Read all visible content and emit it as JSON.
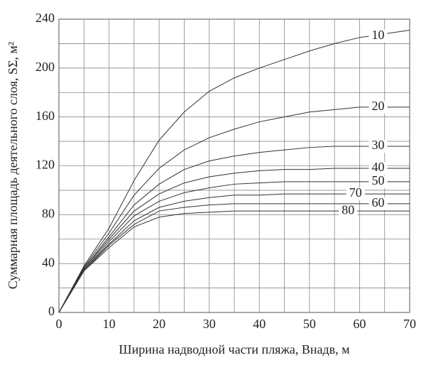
{
  "chart_data": {
    "type": "line",
    "xlabel": "Ширина надводной части пляжа, Bнадв, м",
    "ylabel": "Суммарная площадь деятельного слоя, SΣ, м²",
    "x": [
      0,
      5,
      10,
      15,
      20,
      25,
      30,
      35,
      40,
      45,
      50,
      55,
      60,
      65,
      70
    ],
    "series": [
      {
        "name": "10",
        "color": "#333",
        "values": [
          0,
          38,
          69,
          108,
          141,
          164,
          181,
          192,
          200,
          207,
          214,
          220,
          225,
          228,
          231
        ]
      },
      {
        "name": "20",
        "color": "#333",
        "values": [
          0,
          37,
          65,
          96,
          118,
          133,
          143,
          150,
          156,
          160,
          164,
          166,
          168,
          168,
          168
        ]
      },
      {
        "name": "30",
        "color": "#333",
        "values": [
          0,
          36,
          62,
          88,
          105,
          117,
          124,
          128,
          131,
          133,
          135,
          136,
          136,
          136,
          136
        ]
      },
      {
        "name": "40",
        "color": "#333",
        "values": [
          0,
          36,
          60,
          83,
          97,
          106,
          111,
          114,
          116,
          117,
          117,
          118,
          118,
          118,
          118
        ]
      },
      {
        "name": "50",
        "color": "#333",
        "values": [
          0,
          35,
          58,
          79,
          91,
          98,
          102,
          105,
          106,
          107,
          107,
          107,
          107,
          107,
          107
        ]
      },
      {
        "name": "70",
        "color": "#333",
        "values": [
          0,
          35,
          56,
          75,
          86,
          91,
          94,
          96,
          96,
          97,
          97,
          97,
          97,
          97,
          97
        ]
      },
      {
        "name": "60",
        "color": "#333",
        "values": [
          0,
          34,
          55,
          72,
          83,
          86,
          88,
          89,
          89,
          89,
          89,
          89,
          89,
          89,
          89
        ]
      },
      {
        "name": "80",
        "color": "#333",
        "values": [
          0,
          34,
          53,
          70,
          78,
          81,
          82,
          83,
          83,
          83,
          83,
          83,
          83,
          83,
          83
        ]
      }
    ],
    "xlim": [
      0,
      70
    ],
    "xticks": [
      0,
      10,
      20,
      30,
      40,
      50,
      60,
      70
    ],
    "ylim": [
      0,
      240
    ],
    "yticks": [
      0,
      40,
      80,
      120,
      160,
      200,
      240
    ],
    "grid": true
  }
}
